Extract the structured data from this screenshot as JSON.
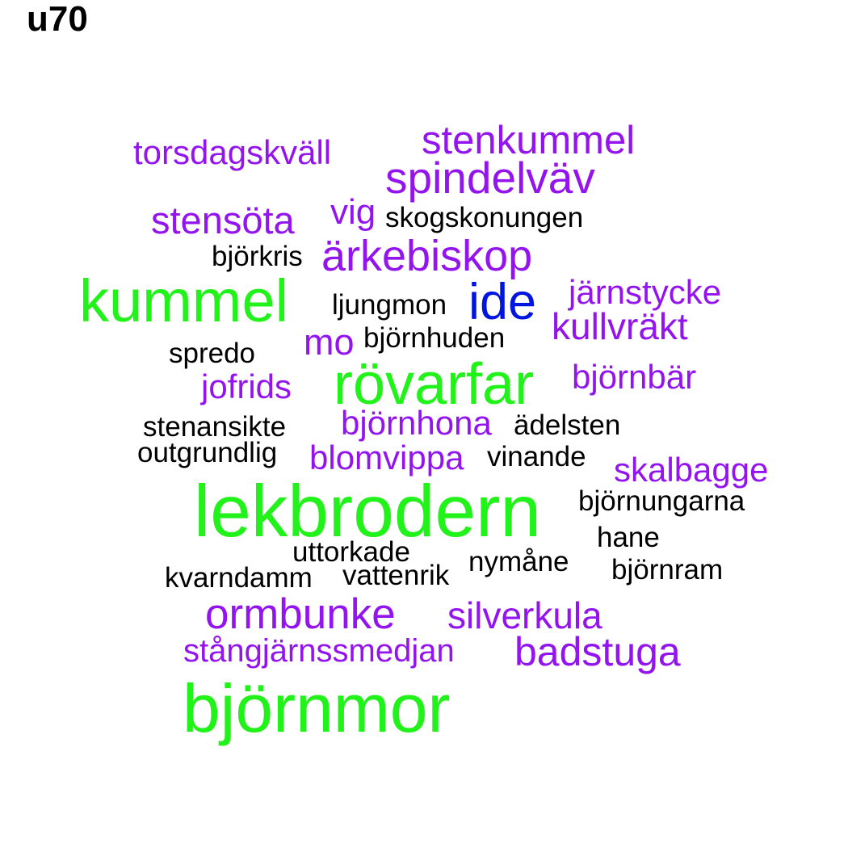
{
  "title": "u70",
  "colors": {
    "black": "#000000",
    "purple": "#9314ee",
    "green": "#21f21a",
    "blue": "#0016e0"
  },
  "words": {
    "torsdagskvall": "torsdagskväll",
    "stenkummel": "stenkummel",
    "spindelvav": "spindelväv",
    "stensota": "stensöta",
    "vig": "vig",
    "skogskonungen": "skogskonungen",
    "bjorkris": "björkris",
    "arkebiskop": "ärkebiskop",
    "kummel": "kummel",
    "ljungmon": "ljungmon",
    "ide": "ide",
    "jarnstycke": "järnstycke",
    "kullvrakt": "kullvräkt",
    "mo": "mo",
    "bjornhuden": "björnhuden",
    "spredo": "spredo",
    "jofrids": "jofrids",
    "rovarfar": "rövarfar",
    "bjornbar": "björnbär",
    "stenansikte": "stenansikte",
    "bjornhona": "björnhona",
    "adelsten": "ädelsten",
    "outgrundlig": "outgrundlig",
    "blomvippa": "blomvippa",
    "vinande": "vinande",
    "skalbagge": "skalbagge",
    "lekbrodern": "lekbrodern",
    "bjornungarna": "björnungarna",
    "hane": "hane",
    "uttorkade": "uttorkade",
    "nymane": "nymåne",
    "bjornram": "björnram",
    "kvarndamm": "kvarndamm",
    "vattenrik": "vattenrik",
    "ormbunke": "ormbunke",
    "silverkula": "silverkula",
    "stangjarnssmedjan": "stångjärnssmedjan",
    "badstuga": "badstuga",
    "bjornmor": "björnmor"
  }
}
